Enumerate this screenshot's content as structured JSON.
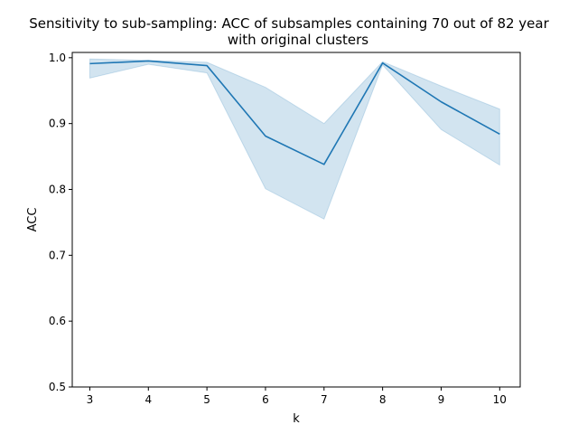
{
  "chart_data": {
    "type": "line",
    "title_line1": "Sensitivity to sub-sampling: ACC of subsamples containing 70 out of 82 year",
    "title_line2": "with original clusters",
    "xlabel": "k",
    "ylabel": "ACC",
    "x": [
      3,
      4,
      5,
      6,
      7,
      8,
      9,
      10
    ],
    "x_ticks": [
      "3",
      "4",
      "5",
      "6",
      "7",
      "8",
      "9",
      "10"
    ],
    "y_ticks": [
      "0.5",
      "0.6",
      "0.7",
      "0.8",
      "0.9",
      "1.0"
    ],
    "xlim": [
      2.7,
      10.35
    ],
    "ylim": [
      0.5,
      1.008
    ],
    "grid": false,
    "series": [
      {
        "values": [
          0.991,
          0.995,
          0.988,
          0.881,
          0.838,
          0.992,
          0.933,
          0.884
        ],
        "lower": [
          0.969,
          0.99,
          0.977,
          0.801,
          0.755,
          0.989,
          0.891,
          0.837
        ],
        "upper": [
          0.998,
          0.996,
          0.993,
          0.955,
          0.9,
          0.994,
          0.957,
          0.922
        ],
        "color": "#1f77b4",
        "band_color": "#1f77b4"
      }
    ]
  }
}
